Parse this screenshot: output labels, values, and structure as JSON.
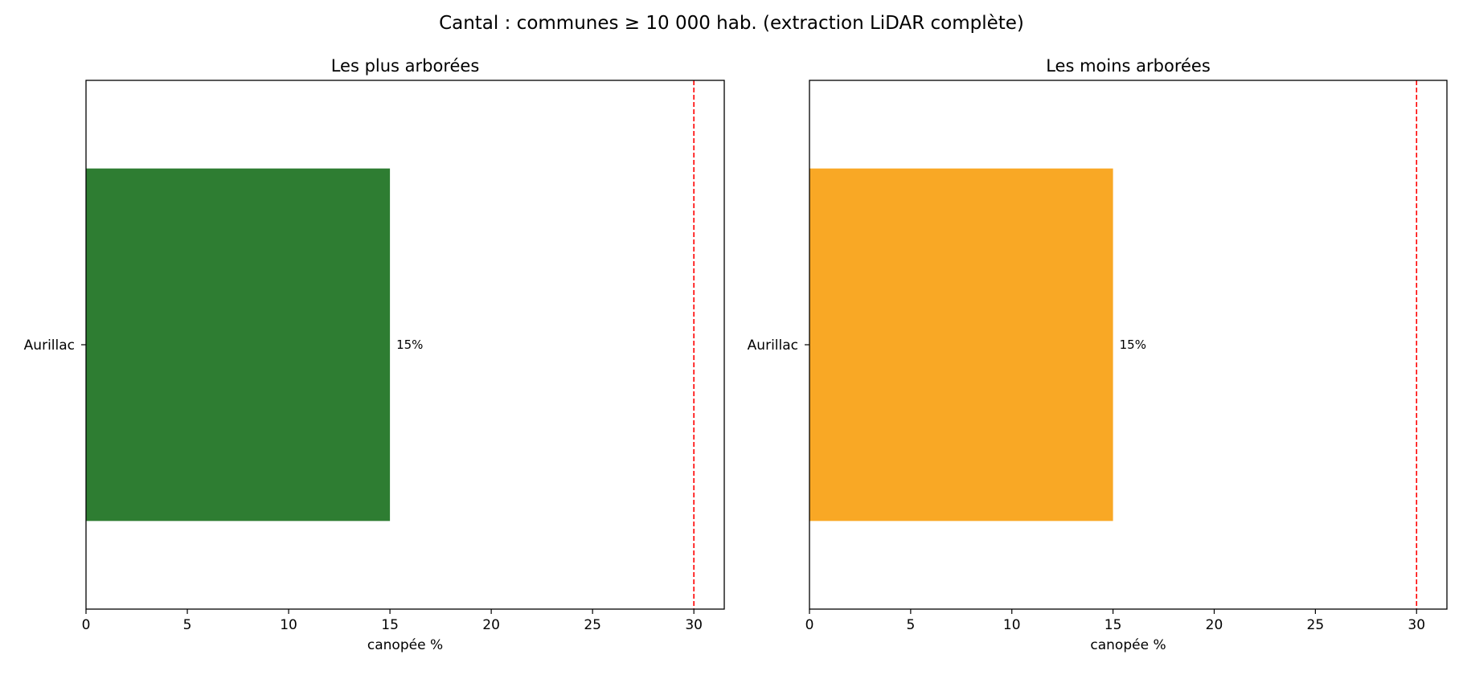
{
  "figure": {
    "suptitle": "Cantal : communes ≥ 10 000 hab. (extraction LiDAR complète)"
  },
  "chart_data": [
    {
      "type": "bar",
      "orientation": "horizontal",
      "title": "Les plus arborées",
      "xlabel": "canopée %",
      "ylabel": "",
      "categories": [
        "Aurillac"
      ],
      "values": [
        15
      ],
      "value_labels": [
        "15%"
      ],
      "xlim": [
        0,
        31.5
      ],
      "xticks": [
        0,
        5,
        10,
        15,
        20,
        25,
        30
      ],
      "reference_line": {
        "x": 30,
        "color": "#ff0000",
        "style": "dashed"
      },
      "bar_color": "#2e7d32",
      "grid": false
    },
    {
      "type": "bar",
      "orientation": "horizontal",
      "title": "Les moins arborées",
      "xlabel": "canopée %",
      "ylabel": "",
      "categories": [
        "Aurillac"
      ],
      "values": [
        15
      ],
      "value_labels": [
        "15%"
      ],
      "xlim": [
        0,
        31.5
      ],
      "xticks": [
        0,
        5,
        10,
        15,
        20,
        25,
        30
      ],
      "reference_line": {
        "x": 30,
        "color": "#ff0000",
        "style": "dashed"
      },
      "bar_color": "#f9a825",
      "grid": false
    }
  ]
}
